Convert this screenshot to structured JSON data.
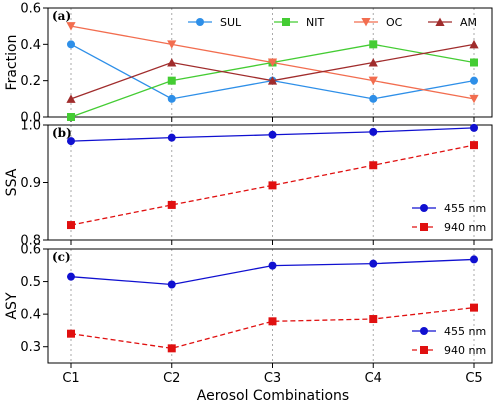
{
  "figure": {
    "xlabel": "Aerosol Combinations",
    "categories": [
      "C1",
      "C2",
      "C3",
      "C4",
      "C5"
    ]
  },
  "chart_data": [
    {
      "type": "line",
      "panel_label": "(a)",
      "ylabel": "Fraction",
      "ylim": [
        0,
        0.6
      ],
      "yticks": [
        "0.0",
        "0.2",
        "0.4",
        "0.6"
      ],
      "categories": [
        "C1",
        "C2",
        "C3",
        "C4",
        "C5"
      ],
      "legend_position": "top-right",
      "grid": "vertical dotted",
      "series": [
        {
          "name": "SUL",
          "color": "#2e8fe8",
          "marker": "circle",
          "dash": "solid",
          "values": [
            0.4,
            0.1,
            0.2,
            0.1,
            0.2
          ]
        },
        {
          "name": "NIT",
          "color": "#44cc33",
          "marker": "square",
          "dash": "solid",
          "values": [
            0.0,
            0.2,
            0.3,
            0.4,
            0.3
          ]
        },
        {
          "name": "OC",
          "color": "#f26d4f",
          "marker": "triangle-down",
          "dash": "solid",
          "values": [
            0.5,
            0.4,
            0.3,
            0.2,
            0.1
          ]
        },
        {
          "name": "AM",
          "color": "#a02c2c",
          "marker": "triangle-up",
          "dash": "solid",
          "values": [
            0.1,
            0.3,
            0.2,
            0.3,
            0.4
          ]
        }
      ]
    },
    {
      "type": "line",
      "panel_label": "(b)",
      "ylabel": "SSA",
      "ylim": [
        0.8,
        1.0
      ],
      "yticks": [
        "0.8",
        "0.9",
        "1.0"
      ],
      "categories": [
        "C1",
        "C2",
        "C3",
        "C4",
        "C5"
      ],
      "legend_position": "bottom-right",
      "grid": "vertical dotted",
      "series": [
        {
          "name": "455 nm",
          "color": "#1010d0",
          "marker": "circle",
          "dash": "solid",
          "values": [
            0.972,
            0.978,
            0.983,
            0.988,
            0.995
          ]
        },
        {
          "name": "940 nm",
          "color": "#e01010",
          "marker": "square",
          "dash": "dashed",
          "values": [
            0.826,
            0.861,
            0.895,
            0.93,
            0.965
          ]
        }
      ]
    },
    {
      "type": "line",
      "panel_label": "(c)",
      "ylabel": "ASY",
      "ylim": [
        0.25,
        0.6
      ],
      "yticks": [
        "0.3",
        "0.4",
        "0.5",
        "0.6"
      ],
      "categories": [
        "C1",
        "C2",
        "C3",
        "C4",
        "C5"
      ],
      "legend_position": "bottom-right",
      "grid": "vertical dotted",
      "series": [
        {
          "name": "455 nm",
          "color": "#1010d0",
          "marker": "circle",
          "dash": "solid",
          "values": [
            0.515,
            0.491,
            0.549,
            0.555,
            0.568
          ]
        },
        {
          "name": "940 nm",
          "color": "#e01010",
          "marker": "square",
          "dash": "dashed",
          "values": [
            0.34,
            0.295,
            0.378,
            0.385,
            0.42
          ]
        }
      ]
    }
  ]
}
